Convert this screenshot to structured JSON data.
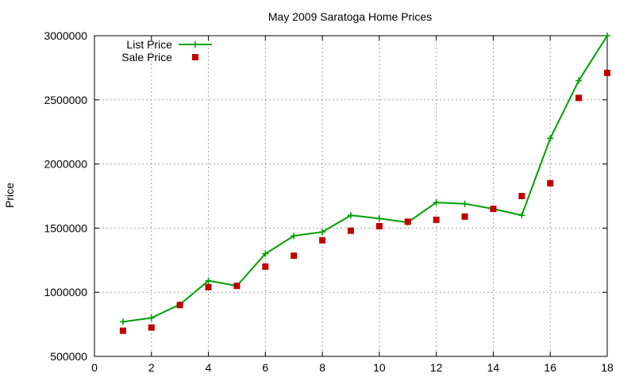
{
  "chart_data": {
    "type": "line",
    "title": "May 2009 Saratoga Home Prices",
    "xlabel": "",
    "ylabel": "Price",
    "xlim": [
      0,
      18
    ],
    "ylim": [
      500000,
      3000000
    ],
    "x_ticks": [
      "0",
      "2",
      "4",
      "6",
      "8",
      "10",
      "12",
      "14",
      "16",
      "18"
    ],
    "y_ticks": [
      "500000",
      "1000000",
      "1500000",
      "2000000",
      "2500000",
      "3000000"
    ],
    "grid": true,
    "legend_position": "top-left",
    "series": [
      {
        "name": "List Price",
        "style": "line+cross",
        "color": "#00a000",
        "x": [
          1,
          2,
          3,
          4,
          5,
          6,
          7,
          8,
          9,
          10,
          11,
          12,
          13,
          14,
          15,
          16,
          17,
          18
        ],
        "y": [
          770000,
          800000,
          905000,
          1090000,
          1050000,
          1300000,
          1440000,
          1470000,
          1600000,
          1575000,
          1545000,
          1700000,
          1690000,
          1650000,
          1600000,
          2200000,
          2650000,
          3000000
        ]
      },
      {
        "name": "Sale Price",
        "style": "square",
        "color": "#c00000",
        "x": [
          1,
          2,
          3,
          4,
          5,
          6,
          7,
          8,
          9,
          10,
          11,
          12,
          13,
          14,
          15,
          16,
          17,
          18
        ],
        "y": [
          700000,
          725000,
          900000,
          1040000,
          1050000,
          1200000,
          1285000,
          1405000,
          1480000,
          1515000,
          1550000,
          1565000,
          1590000,
          1650000,
          1750000,
          1850000,
          2515000,
          2710000
        ]
      }
    ]
  }
}
